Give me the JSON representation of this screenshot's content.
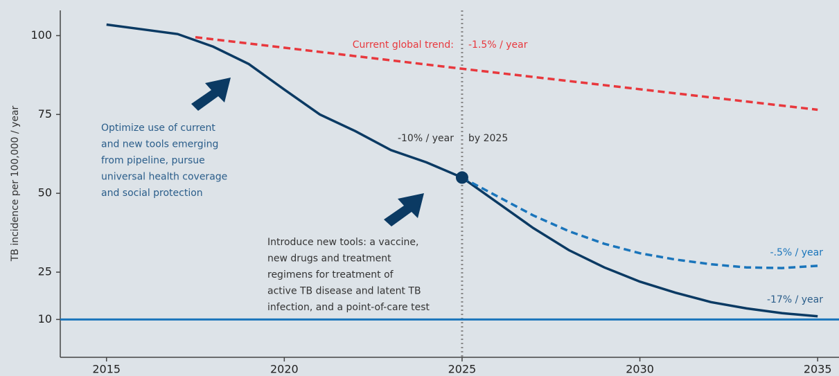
{
  "chart_data": {
    "type": "line",
    "y_axis_label": "TB incidence per 100,000 / year",
    "xlim": [
      2013.7,
      2035.6
    ],
    "xticks": [
      2015,
      2020,
      2025,
      2030,
      2035
    ],
    "ylim": [
      -2,
      108
    ],
    "yticks": [
      10,
      25,
      50,
      75,
      100
    ],
    "series": [
      {
        "color": "#0b3a63",
        "style": "solid",
        "x": [
          2015,
          2016,
          2017,
          2018,
          2019,
          2020,
          2021,
          2022,
          2023,
          2024,
          2025,
          2026,
          2027,
          2028,
          2029,
          2030,
          2031,
          2032,
          2033,
          2034,
          2035
        ],
        "values": [
          103.5,
          102,
          100.5,
          96.5,
          91,
          82.9,
          75,
          69.7,
          63.7,
          59.8,
          55,
          47,
          39,
          32,
          26.5,
          22,
          18.5,
          15.5,
          13.5,
          12,
          11
        ]
      },
      {
        "color": "#e8383d",
        "style": "dashed",
        "x": [
          2017.5,
          2025,
          2035
        ],
        "values": [
          99.5,
          89.5,
          76.5
        ]
      },
      {
        "color": "#1a75bb",
        "style": "dashed",
        "x": [
          2025,
          2026,
          2027,
          2028,
          2029,
          2030,
          2031,
          2032,
          2033,
          2034,
          2035
        ],
        "values": [
          55,
          49,
          43,
          38,
          34,
          31,
          29,
          27.5,
          26.5,
          26.3,
          27
        ]
      }
    ],
    "target": {
      "value": 10,
      "color": "#1a75bb"
    },
    "milestone": {
      "x": 2025,
      "value": 55,
      "color": "#0b3a63"
    },
    "annotations": [
      {
        "lines": [
          "Current global trend:"
        ],
        "color": "#e8383d"
      },
      {
        "lines": [
          "-1.5% / year"
        ],
        "color": "#e8383d"
      },
      {
        "lines": [
          "-10% / year"
        ],
        "color": "#333333"
      },
      {
        "lines": [
          "by 2025"
        ],
        "color": "#333333"
      },
      {
        "lines": [
          "Optimize use of current",
          "and new tools emerging",
          "from pipeline, pursue",
          "universal health coverage",
          "and social protection"
        ],
        "color": "#2a5d8a"
      },
      {
        "lines": [
          "Introduce new tools: a vaccine,",
          "new drugs and treatment",
          "regimens for treatment of",
          "active TB disease and latent TB",
          "infection, and a point-of-care test"
        ],
        "color": "#333333"
      },
      {
        "lines": [
          "-.5% / year"
        ],
        "color": "#1a75bb"
      },
      {
        "lines": [
          "-17% / year"
        ],
        "color": "#2a5d8a"
      }
    ]
  }
}
